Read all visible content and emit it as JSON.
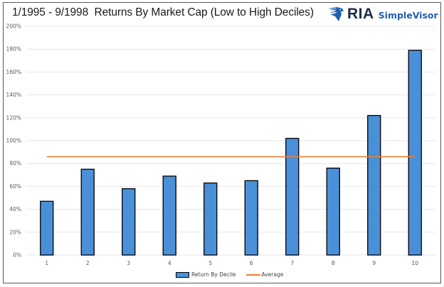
{
  "chart_data": {
    "type": "bar",
    "title": "1/1995 - 9/1998  Returns By Market Cap (Low to High Deciles)",
    "xlabel": "",
    "ylabel": "",
    "categories": [
      "1",
      "2",
      "3",
      "4",
      "5",
      "6",
      "7",
      "8",
      "9",
      "10"
    ],
    "series": [
      {
        "name": "Return By Decile",
        "type": "bar",
        "color": "#4a90d9",
        "values": [
          47,
          75,
          58,
          69,
          63,
          65,
          102,
          76,
          122,
          179
        ]
      },
      {
        "name": "Average",
        "type": "line",
        "color": "#ed7d31",
        "values": [
          86,
          86,
          86,
          86,
          86,
          86,
          86,
          86,
          86,
          86
        ]
      }
    ],
    "ylim": [
      0,
      200
    ],
    "yticks": [
      "0%",
      "20%",
      "40%",
      "60%",
      "80%",
      "100%",
      "120%",
      "140%",
      "160%",
      "180%",
      "200%"
    ],
    "grid": true,
    "legend_position": "bottom",
    "value_format": "percent"
  },
  "header": {
    "title": "1/1995 - 9/1998  Returns By Market Cap (Low to High Deciles)",
    "logo_ria": "RIA",
    "logo_simplevisor": "SimpleVisor"
  },
  "legend": {
    "bar_label": "Return By Decile",
    "line_label": "Average"
  },
  "colors": {
    "bar_fill": "#4a90d9",
    "bar_stroke": "#000000",
    "average_line": "#ed7d31",
    "gridline": "#e6e6e6",
    "frame": "#595959",
    "brand_navy": "#1b2a4a",
    "brand_blue": "#1f5fae"
  }
}
